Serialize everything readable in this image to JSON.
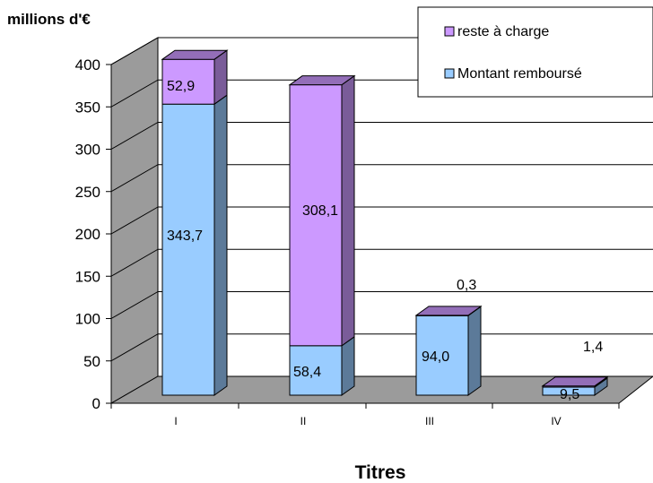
{
  "chart_data": {
    "type": "bar",
    "stacked": true,
    "three_d": true,
    "title": "",
    "ylabel": "millions d'€",
    "xlabel": "Titres",
    "ylim": [
      0,
      400
    ],
    "yticks": [
      0,
      50,
      100,
      150,
      200,
      250,
      300,
      350,
      400
    ],
    "categories": [
      "I",
      "II",
      "III",
      "IV"
    ],
    "series": [
      {
        "name": "Montant remboursé",
        "color": "#99ccff",
        "values": [
          343.7,
          58.4,
          94.0,
          9.5
        ],
        "labels": [
          "343,7",
          "58,4",
          "94,0",
          "9,5"
        ]
      },
      {
        "name": "reste à charge",
        "color": "#cc99ff",
        "values": [
          52.9,
          308.1,
          0.3,
          1.4
        ],
        "labels": [
          "52,9",
          "308,1",
          "0,3",
          "1,4"
        ]
      }
    ],
    "grid": true,
    "legend": "top-right"
  }
}
